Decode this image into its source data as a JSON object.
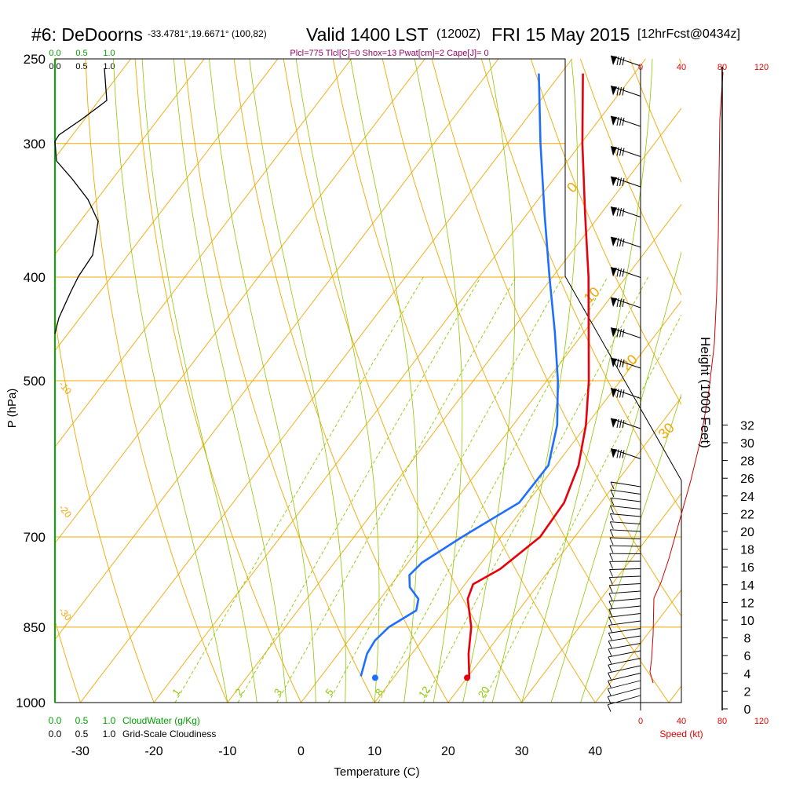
{
  "header": {
    "station": "#6: DeDoorns",
    "coords": "-33.4781°,19.6671° (100,82)",
    "valid": "Valid 1400 LST",
    "zulu": "(1200Z)",
    "date": "FRI 15 May 2015",
    "forecast": "[12hrFcst@0434z]"
  },
  "params_line": "Plcl=775 Tlcl[C]=0 Shox=13 Pwat[cm]=2 Cape[J]= 0",
  "colors": {
    "temperature": "#e8000b",
    "dewpoint": "#1e6fff",
    "isotherm": "#f0a800",
    "mixing": "#8cc800",
    "cloudwater": "#00a000",
    "speed": "#cc0000",
    "params": "#990066"
  },
  "top_scale": {
    "green_ticks": [
      "0.0",
      "0.5",
      "1.0"
    ],
    "black_ticks": [
      "0.0",
      "0.5",
      "1.0"
    ]
  },
  "bottom_scale": {
    "green_ticks": [
      "0.0",
      "0.5",
      "1.0"
    ],
    "green_label": "CloudWater (g/Kg)",
    "black_ticks": [
      "0.0",
      "0.5",
      "1.0"
    ],
    "black_label": "Grid-Scale Cloudiness"
  },
  "speed_axis": {
    "ticks": [
      "0",
      "40",
      "80",
      "120"
    ],
    "label": "Speed (kt)"
  },
  "height_axis": {
    "label": "Height (1000 Feet)",
    "ticks": [
      "0",
      "2",
      "4",
      "6",
      "8",
      "10",
      "12",
      "14",
      "16",
      "18",
      "20",
      "22",
      "24",
      "26",
      "28",
      "30",
      "32"
    ]
  },
  "chart_data": {
    "type": "line",
    "title": "Skew-T log-P sounding",
    "xlabel": "Temperature (C)",
    "ylabel": "P (hPa)",
    "xlim": [
      -35,
      45
    ],
    "x_ticks": [
      "-30",
      "-20",
      "-10",
      "0",
      "10",
      "20",
      "30",
      "40"
    ],
    "y_ticks": [
      "250",
      "300",
      "400",
      "500",
      "700",
      "850",
      "1000"
    ],
    "isotherm_labels": [
      "-30",
      "-20",
      "-10",
      "0",
      "10",
      "20",
      "30"
    ],
    "mixing_ratio_labels": [
      "1",
      "2",
      "3",
      "5",
      "8",
      "12",
      "20"
    ],
    "series": [
      {
        "name": "Temperature",
        "points": [
          {
            "p": 948,
            "t": 20.3
          },
          {
            "p": 900,
            "t": 17.7
          },
          {
            "p": 850,
            "t": 15.3
          },
          {
            "p": 800,
            "t": 11.9
          },
          {
            "p": 775,
            "t": 11.1
          },
          {
            "p": 750,
            "t": 13.2
          },
          {
            "p": 700,
            "t": 15.3
          },
          {
            "p": 650,
            "t": 15.0
          },
          {
            "p": 600,
            "t": 13.1
          },
          {
            "p": 550,
            "t": 9.9
          },
          {
            "p": 500,
            "t": 5.7
          },
          {
            "p": 450,
            "t": 0.6
          },
          {
            "p": 400,
            "t": -5.1
          },
          {
            "p": 350,
            "t": -12.0
          },
          {
            "p": 300,
            "t": -19.8
          },
          {
            "p": 258,
            "t": -27.0
          }
        ]
      },
      {
        "name": "Dewpoint",
        "points": [
          {
            "p": 945,
            "t": 5.4
          },
          {
            "p": 900,
            "t": 3.9
          },
          {
            "p": 875,
            "t": 3.6
          },
          {
            "p": 850,
            "t": 4.1
          },
          {
            "p": 820,
            "t": 6.1
          },
          {
            "p": 800,
            "t": 5.2
          },
          {
            "p": 780,
            "t": 2.8
          },
          {
            "p": 760,
            "t": 1.5
          },
          {
            "p": 740,
            "t": 1.9
          },
          {
            "p": 700,
            "t": 4.7
          },
          {
            "p": 650,
            "t": 8.9
          },
          {
            "p": 600,
            "t": 9.0
          },
          {
            "p": 550,
            "t": 6.0
          },
          {
            "p": 500,
            "t": 1.5
          },
          {
            "p": 450,
            "t": -4.0
          },
          {
            "p": 400,
            "t": -10.4
          },
          {
            "p": 350,
            "t": -17.5
          },
          {
            "p": 300,
            "t": -25.5
          },
          {
            "p": 258,
            "t": -33.0
          }
        ]
      }
    ],
    "surface_markers": [
      {
        "name": "surface-temperature",
        "p": 948,
        "t": 20.0
      },
      {
        "name": "surface-dewpoint",
        "p": 948,
        "t": 7.5
      }
    ]
  }
}
